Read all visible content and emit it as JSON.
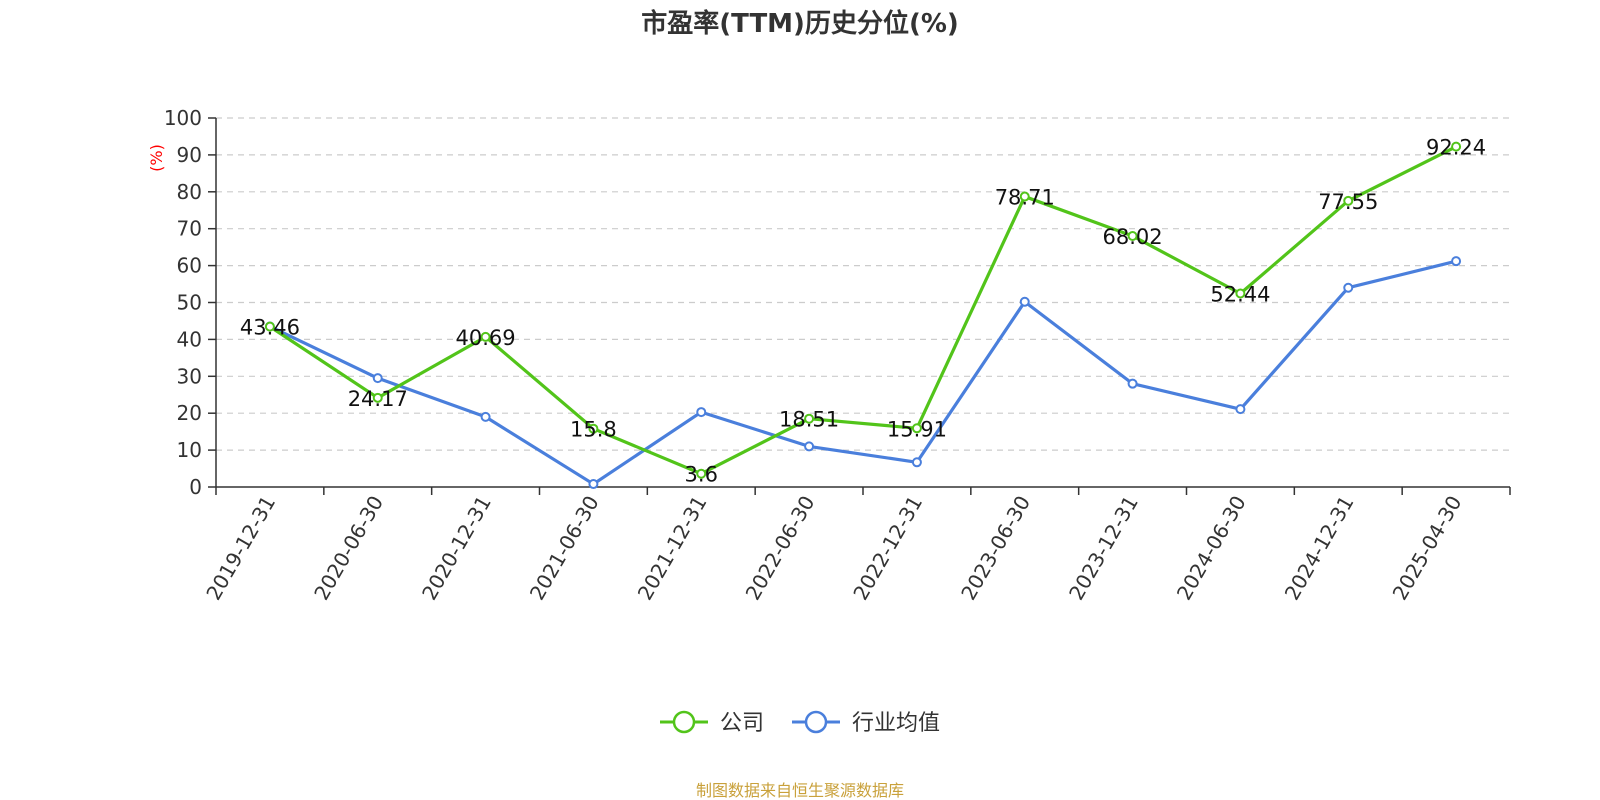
{
  "chart_data": {
    "type": "line",
    "title": "市盈率(TTM)历史分位(%)",
    "ylabel": "(%)",
    "ylabel_color": "#ff0000",
    "ylim": [
      0,
      100
    ],
    "yticks": [
      0,
      10,
      20,
      30,
      40,
      50,
      60,
      70,
      80,
      90,
      100
    ],
    "grid": true,
    "legend_position": "bottom-center",
    "x": [
      "2019-12-31",
      "2020-06-30",
      "2020-12-31",
      "2021-06-30",
      "2021-12-31",
      "2022-06-30",
      "2022-12-31",
      "2023-06-30",
      "2023-12-31",
      "2024-06-30",
      "2024-12-31",
      "2025-04-30"
    ],
    "series": [
      {
        "name": "公司",
        "color": "#52c41a",
        "show_labels": true,
        "values": [
          43.46,
          24.17,
          40.69,
          15.8,
          3.6,
          18.51,
          15.91,
          78.71,
          68.02,
          52.44,
          77.55,
          92.24
        ]
      },
      {
        "name": "行业均值",
        "color": "#4a7fdc",
        "show_labels": false,
        "values": [
          43.5,
          29.5,
          19.0,
          0.8,
          20.3,
          11.0,
          6.7,
          50.2,
          28.0,
          21.1,
          54.0,
          61.2
        ]
      }
    ],
    "source": "制图数据来自恒生聚源数据库",
    "source_color": "#c9a13b"
  }
}
